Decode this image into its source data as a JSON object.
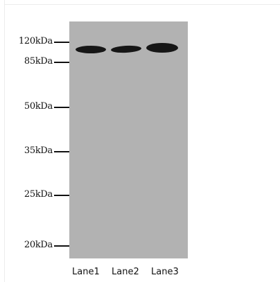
{
  "markers": [
    {
      "label": "120kDa"
    },
    {
      "label": "85kDa"
    },
    {
      "label": "50kDa"
    },
    {
      "label": "35kDa"
    },
    {
      "label": "25kDa"
    },
    {
      "label": "20kDa"
    }
  ],
  "lanes": [
    {
      "label": "Lane1"
    },
    {
      "label": "Lane2"
    },
    {
      "label": "Lane3"
    }
  ],
  "colors": {
    "membrane": "#b2b2b2",
    "band": "#161616",
    "background": "#ffffff"
  }
}
